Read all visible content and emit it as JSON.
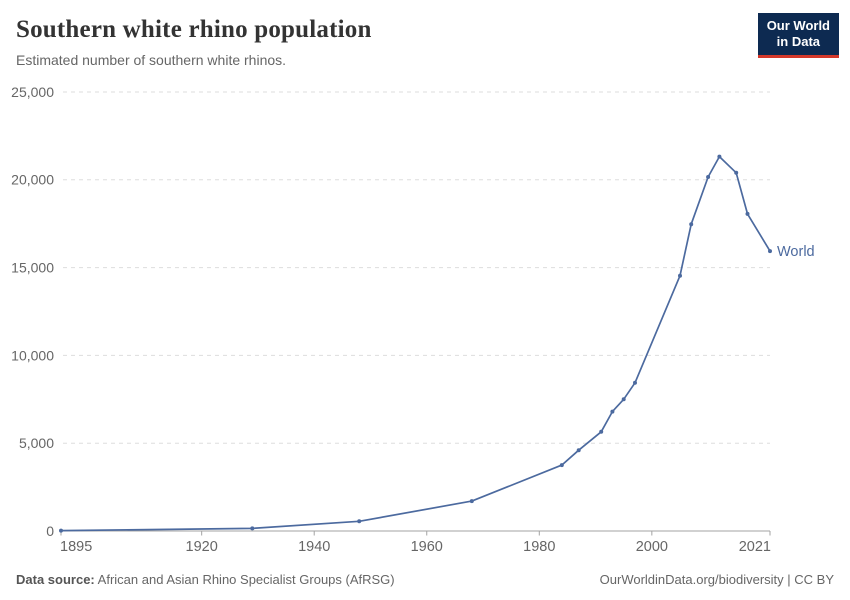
{
  "header": {
    "logo": {
      "line1": "Our World",
      "line2": "in Data"
    }
  },
  "chart_data": {
    "type": "line",
    "title": "Southern white rhino population",
    "subtitle": "Estimated number of southern white rhinos.",
    "xlabel": "",
    "ylabel": "",
    "xlim": [
      1895,
      2021
    ],
    "ylim": [
      0,
      25000
    ],
    "x_ticks": [
      1895,
      1920,
      1940,
      1960,
      1980,
      2000,
      2021
    ],
    "y_ticks": [
      0,
      5000,
      10000,
      15000,
      20000,
      25000
    ],
    "grid": "horizontal-dashed",
    "legend_position": "end-of-line-label",
    "series": [
      {
        "name": "World",
        "color": "#4C6A9F",
        "points": [
          [
            1895,
            20
          ],
          [
            1929,
            150
          ],
          [
            1948,
            550
          ],
          [
            1968,
            1700
          ],
          [
            1984,
            3750
          ],
          [
            1987,
            4600
          ],
          [
            1991,
            5650
          ],
          [
            1993,
            6800
          ],
          [
            1995,
            7500
          ],
          [
            1997,
            8440
          ],
          [
            2005,
            14540
          ],
          [
            2007,
            17470
          ],
          [
            2010,
            20160
          ],
          [
            2012,
            21320
          ],
          [
            2015,
            20400
          ],
          [
            2017,
            18060
          ],
          [
            2021,
            15940
          ]
        ]
      }
    ]
  },
  "footer": {
    "source_label": "Data source:",
    "source_text": "African and Asian Rhino Specialist Groups (AfRSG)",
    "attribution": "OurWorldinData.org/biodiversity | CC BY"
  },
  "colors": {
    "line": "#4C6A9F",
    "grid": "#dddddd",
    "axis": "#a3a3a3",
    "tick_label": "#666666",
    "title": "#333333",
    "subtitle": "#666666",
    "logo_bg": "#0d2a51",
    "logo_stripe": "#d4382a"
  }
}
